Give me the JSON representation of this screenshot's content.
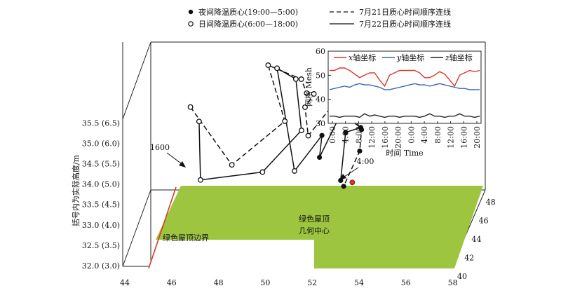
{
  "chart_data": [
    {
      "type": "scatter",
      "subtype": "3d-trajectory",
      "legend": {
        "placement": "top-center",
        "entries": [
          {
            "marker": "filled-circle",
            "label": "夜间降温质心(19:00—5:00)"
          },
          {
            "marker": "open-circle",
            "label": "日间降温质心(6:00—18:00)"
          },
          {
            "marker": "dashed-line",
            "label": "7月21日质心时间顺序连线"
          },
          {
            "marker": "solid-line",
            "label": "7月22日质心时间顺序连线"
          }
        ]
      },
      "ylabel": "括号内为实际高度/m",
      "x_ticks": [
        "44",
        "46",
        "48",
        "50",
        "52",
        "54",
        "56",
        "58"
      ],
      "depth_ticks": [
        "40",
        "42",
        "44",
        "46",
        "48"
      ],
      "z_ticks": [
        "32.0 (3.0)",
        "32.5 (3.5)",
        "33.0 (4.0)",
        "33.5 (4.5)",
        "34.0 (5.0)",
        "34.5 (5.5)",
        "35.0 (6.0)",
        "35.5 (6.5)"
      ],
      "annotations": {
        "t1600": "1600",
        "t400": "4:00",
        "roof_edge": "绿色屋顶边界",
        "center_line1": "绿色屋顶",
        "center_line2": "几何中心"
      },
      "colors": {
        "roof": "#9dc53f",
        "roof_edge": "#d93a2b",
        "center_point": "#e03020"
      },
      "day_points": [
        [
          46.3,
          44.6,
          34.45
        ],
        [
          46.0,
          44.2,
          34.9
        ],
        [
          47.8,
          44.1,
          33.5
        ],
        [
          46.5,
          43.8,
          33.2
        ],
        [
          49.1,
          45.6,
          35.6
        ],
        [
          49.5,
          45.5,
          35.55
        ],
        [
          50.4,
          45.0,
          35.4
        ],
        [
          50.6,
          45.2,
          35.35
        ],
        [
          50.9,
          44.8,
          35.1
        ],
        [
          50.9,
          44.4,
          34.85
        ],
        [
          49.8,
          45.7,
          34.2
        ],
        [
          50.5,
          45.8,
          33.95
        ],
        [
          49.1,
          44.2,
          33.3
        ],
        [
          50.5,
          44.1,
          33.35
        ],
        [
          51.0,
          46.0,
          34.8
        ],
        [
          51.0,
          44.6,
          34.1
        ]
      ],
      "night_points": [
        [
          51.9,
          46.8,
          34.5
        ],
        [
          52.3,
          46.8,
          34.45
        ],
        [
          52.5,
          46.5,
          34.3
        ],
        [
          52.2,
          46.0,
          34.3
        ],
        [
          52.7,
          46.3,
          34.1
        ],
        [
          53.0,
          46.1,
          33.95
        ],
        [
          52.4,
          45.8,
          33.9
        ],
        [
          53.0,
          46.3,
          33.85
        ],
        [
          52.4,
          44.6,
          33.0
        ],
        [
          52.6,
          44.2,
          32.95
        ],
        [
          53.2,
          44.7,
          33.7
        ],
        [
          51.4,
          45.7,
          33.85
        ],
        [
          51.4,
          45.1,
          33.45
        ]
      ],
      "center_point": [
        52.9,
        44.6,
        32.95
      ],
      "jul21_path": [
        [
          46.0,
          44.2,
          34.9
        ],
        [
          47.8,
          44.1,
          33.5
        ],
        [
          49.8,
          45.7,
          34.2
        ],
        [
          49.1,
          45.6,
          35.6
        ],
        [
          50.6,
          45.2,
          35.35
        ],
        [
          50.9,
          44.8,
          35.1
        ],
        [
          51.0,
          46.0,
          34.8
        ],
        [
          50.9,
          44.4,
          34.85
        ],
        [
          51.0,
          44.6,
          34.1
        ],
        [
          51.9,
          46.8,
          34.5
        ],
        [
          52.7,
          46.3,
          34.1
        ],
        [
          53.0,
          46.3,
          33.85
        ],
        [
          53.2,
          44.7,
          33.7
        ],
        [
          52.6,
          44.2,
          32.95
        ]
      ],
      "jul22_path": [
        [
          46.3,
          44.6,
          34.45
        ],
        [
          46.5,
          43.8,
          33.2
        ],
        [
          49.1,
          44.2,
          33.3
        ],
        [
          50.5,
          45.8,
          33.95
        ],
        [
          50.4,
          45.0,
          35.4
        ],
        [
          49.5,
          45.5,
          35.55
        ],
        [
          50.5,
          44.1,
          33.35
        ],
        [
          51.4,
          45.7,
          33.85
        ],
        [
          51.4,
          45.1,
          33.45
        ],
        [
          52.3,
          46.8,
          34.45
        ],
        [
          52.5,
          46.5,
          34.3
        ],
        [
          52.2,
          46.0,
          34.3
        ],
        [
          53.0,
          46.1,
          33.95
        ],
        [
          52.4,
          45.8,
          33.9
        ],
        [
          52.4,
          44.6,
          33.0
        ]
      ]
    },
    {
      "type": "line",
      "placement": "inset-top-right",
      "xlabel": "时间 Time",
      "ylabel": "网格 Mesh",
      "ylim": [
        30,
        60
      ],
      "y_ticks": [
        "30",
        "40",
        "50",
        "60"
      ],
      "x_ticks": [
        "0:00",
        "4:00",
        "8:00",
        "12:00",
        "16:00",
        "20:00",
        "0:00",
        "4:00",
        "8:00",
        "12:00",
        "16:00",
        "20:00"
      ],
      "legend": {
        "placement": "top"
      },
      "series": [
        {
          "name": "x轴坐标",
          "italic_axis": "x",
          "suffix": "轴坐标",
          "color": "#d9362b",
          "values": [
            52,
            52,
            53,
            53,
            52,
            50.5,
            49,
            50,
            51,
            51,
            48,
            45.5,
            50,
            51,
            52,
            52,
            52,
            52,
            51,
            49,
            49,
            50,
            51.5,
            50.5,
            48,
            45.5,
            50,
            51,
            52,
            51.5,
            52
          ]
        },
        {
          "name": "y轴坐标",
          "italic_axis": "y",
          "suffix": "轴坐标",
          "color": "#3c66b0",
          "values": [
            44,
            44.5,
            45,
            45.5,
            45,
            46,
            46.5,
            46,
            46,
            45.5,
            45,
            44,
            44,
            44.5,
            45,
            45.5,
            46,
            46.5,
            46,
            46,
            45.5,
            46,
            46.5,
            46,
            45.5,
            45,
            44.5,
            44.5,
            44,
            44,
            44
          ]
        },
        {
          "name": "z轴坐标",
          "italic_axis": "z",
          "suffix": "轴坐标",
          "color": "#222222",
          "values": [
            33,
            33,
            32.5,
            33,
            33,
            33,
            32.5,
            34,
            33,
            33.5,
            33,
            32.5,
            33,
            33,
            32.5,
            33,
            33,
            33,
            32.5,
            33,
            34,
            33,
            33,
            32.5,
            33,
            33,
            34,
            33,
            33,
            32.5,
            33
          ]
        }
      ]
    }
  ]
}
